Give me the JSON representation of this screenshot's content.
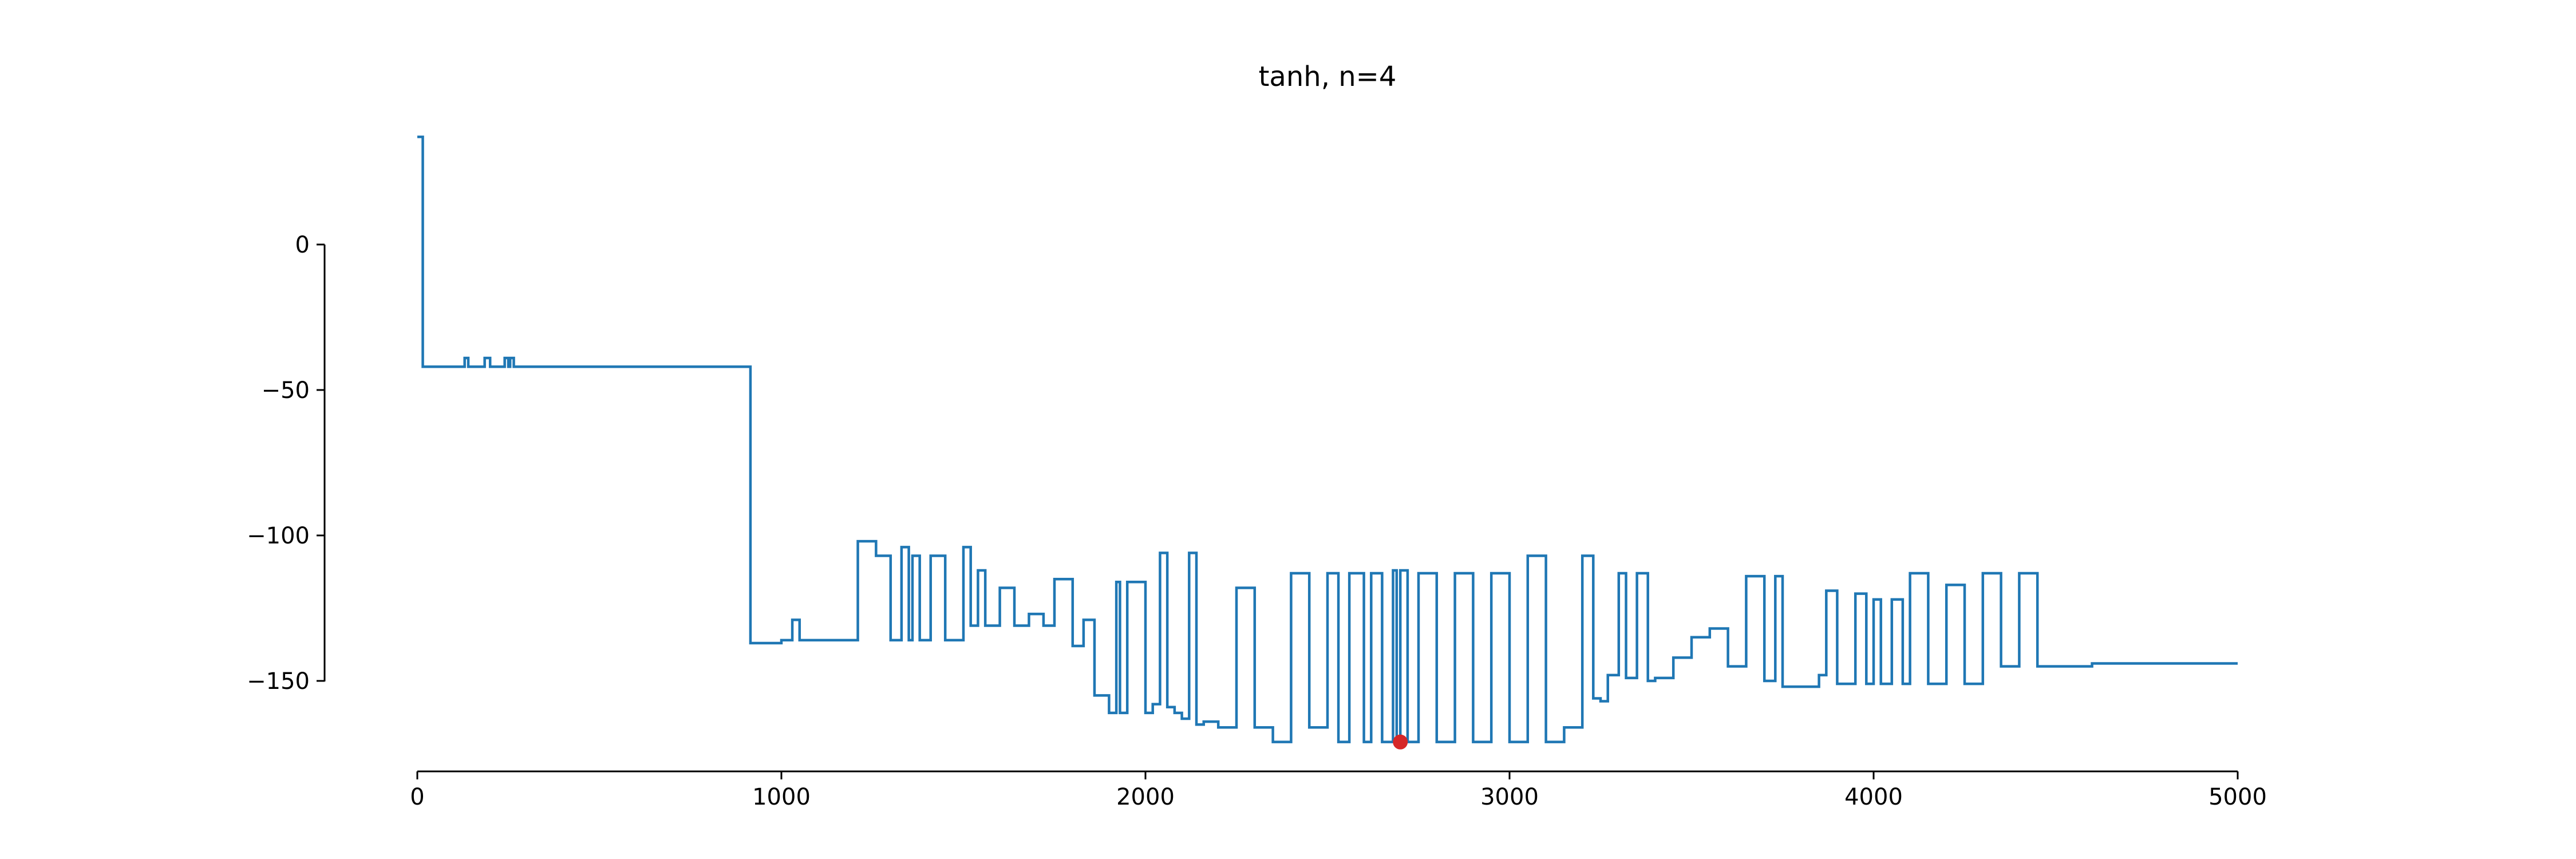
{
  "chart_data": {
    "type": "line",
    "title": "tanh, n=4",
    "xlabel": "",
    "ylabel": "",
    "xlim": [
      0,
      5000
    ],
    "ylim": [
      -180,
      38
    ],
    "x_ticks": [
      0,
      1000,
      2000,
      3000,
      4000,
      5000
    ],
    "x_tick_labels": [
      "0",
      "1000",
      "2000",
      "3000",
      "4000",
      "5000"
    ],
    "y_ticks": [
      0,
      -50,
      -100,
      -150
    ],
    "y_tick_labels": [
      "0",
      "−50",
      "−100",
      "−150"
    ],
    "grid": false,
    "line_color": "#1f77b4",
    "marker_color": "#d62728",
    "series": [
      {
        "step": "post",
        "x": [
          0,
          15,
          130,
          140,
          185,
          200,
          240,
          250,
          255,
          265,
          915,
          1000,
          1030,
          1050,
          1210,
          1260,
          1300,
          1330,
          1350,
          1360,
          1380,
          1410,
          1450,
          1500,
          1520,
          1540,
          1560,
          1600,
          1640,
          1680,
          1720,
          1750,
          1800,
          1830,
          1860,
          1900,
          1920,
          1930,
          1950,
          2000,
          2020,
          2040,
          2060,
          2080,
          2100,
          2120,
          2140,
          2160,
          2200,
          2250,
          2300,
          2350,
          2400,
          2450,
          2500,
          2530,
          2560,
          2600,
          2620,
          2650,
          2680,
          2690,
          2700,
          2720,
          2750,
          2800,
          2850,
          2900,
          2950,
          3000,
          3050,
          3100,
          3150,
          3200,
          3230,
          3250,
          3270,
          3300,
          3320,
          3350,
          3380,
          3400,
          3450,
          3500,
          3550,
          3600,
          3650,
          3700,
          3730,
          3750,
          3800,
          3850,
          3870,
          3900,
          3950,
          3980,
          4000,
          4020,
          4050,
          4080,
          4100,
          4150,
          4200,
          4250,
          4300,
          4350,
          4400,
          4450,
          4500,
          4550,
          4600,
          4650,
          4700,
          4750,
          4800,
          4850,
          4900,
          4950,
          5000
        ],
        "y": [
          37,
          -42,
          -39,
          -42,
          -39,
          -42,
          -39,
          -42,
          -39,
          -42,
          -137,
          -136,
          -129,
          -136,
          -102,
          -107,
          -136,
          -104,
          -136,
          -107,
          -136,
          -107,
          -136,
          -104,
          -131,
          -112,
          -131,
          -118,
          -131,
          -127,
          -131,
          -115,
          -138,
          -129,
          -155,
          -161,
          -116,
          -161,
          -116,
          -161,
          -158,
          -106,
          -159,
          -161,
          -163,
          -106,
          -165,
          -164,
          -166,
          -118,
          -166,
          -171,
          -113,
          -166,
          -113,
          -171,
          -113,
          -171,
          -113,
          -171,
          -112,
          -171,
          -112,
          -171,
          -113,
          -171,
          -113,
          -171,
          -113,
          -171,
          -107,
          -171,
          -166,
          -107,
          -156,
          -157,
          -148,
          -113,
          -149,
          -113,
          -150,
          -149,
          -142,
          -135,
          -132,
          -145,
          -114,
          -150,
          -114,
          -152,
          -152,
          -148,
          -119,
          -151,
          -120,
          -151,
          -122,
          -151,
          -122,
          -151,
          -113,
          -151,
          -117,
          -151,
          -113,
          -145,
          -113,
          -145,
          -145,
          -145,
          -144,
          -144,
          -144,
          -144,
          -144,
          -144,
          -144,
          -144,
          -144
        ]
      }
    ],
    "highlight_points": [
      {
        "x": 2700,
        "y": -171
      }
    ]
  }
}
